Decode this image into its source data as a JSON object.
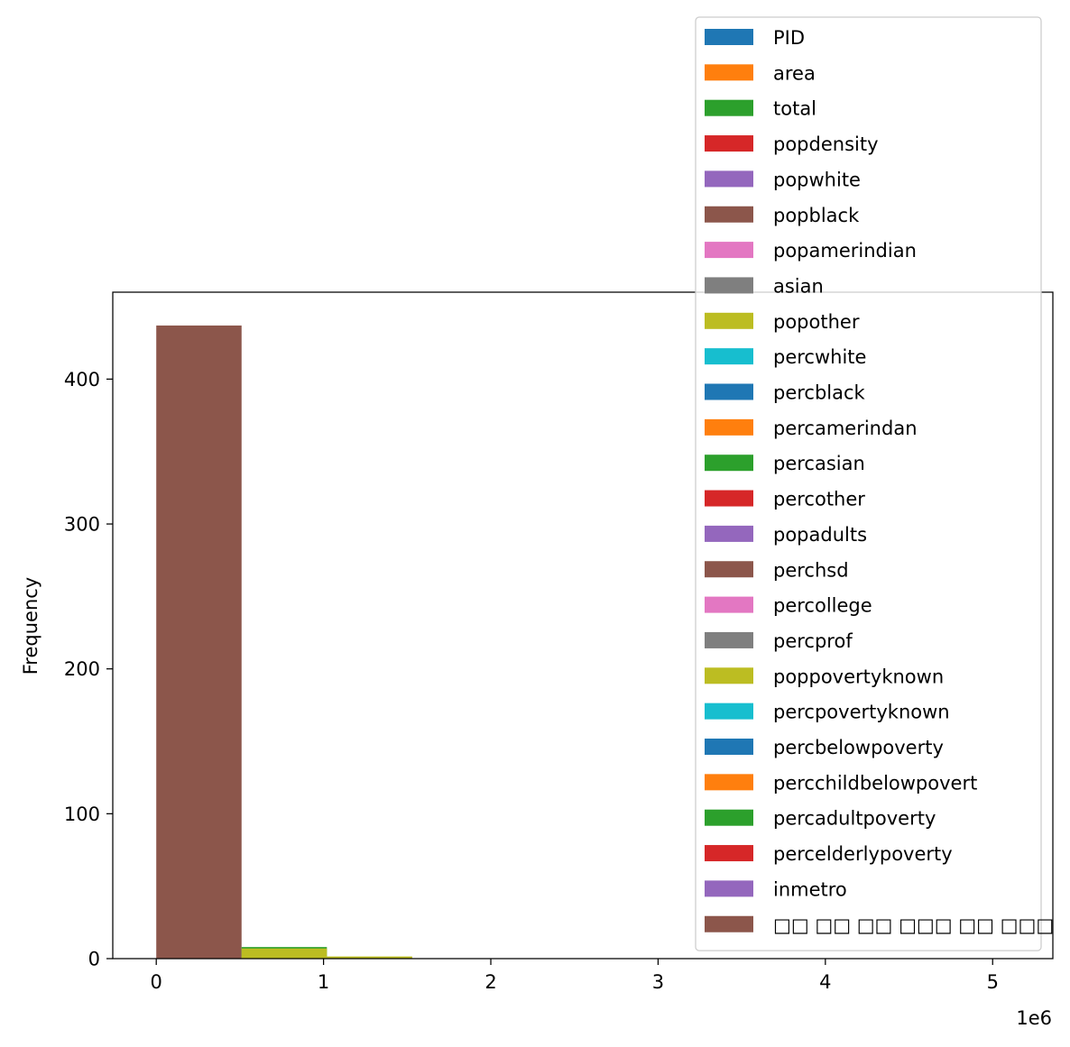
{
  "chart_data": {
    "type": "bar",
    "ylabel": "Frequency",
    "x_offset_label": "1e6",
    "xlim": [
      -260000,
      5360000
    ],
    "ylim": [
      0,
      460
    ],
    "x_ticks": [
      {
        "value": 0,
        "label": "0"
      },
      {
        "value": 1000000,
        "label": "1"
      },
      {
        "value": 2000000,
        "label": "2"
      },
      {
        "value": 3000000,
        "label": "3"
      },
      {
        "value": 4000000,
        "label": "4"
      },
      {
        "value": 5000000,
        "label": "5"
      }
    ],
    "y_ticks": [
      {
        "value": 0,
        "label": "0"
      },
      {
        "value": 100,
        "label": "100"
      },
      {
        "value": 200,
        "label": "200"
      },
      {
        "value": 300,
        "label": "300"
      },
      {
        "value": 400,
        "label": "400"
      }
    ],
    "bars": [
      {
        "x0": 0,
        "x1": 510000,
        "y": 437,
        "color": "#8c564b"
      },
      {
        "x0": 510000,
        "x1": 1020000,
        "y": 8,
        "color": "#2ca02c"
      },
      {
        "x0": 510000,
        "x1": 1020000,
        "y": 7,
        "color": "#bcbd22"
      },
      {
        "x0": 1020000,
        "x1": 1530000,
        "y": 1.5,
        "color": "#bcbd22"
      }
    ],
    "legend": {
      "placement": "top-right",
      "entries": [
        {
          "label": "PID",
          "color": "#1f77b4"
        },
        {
          "label": "area",
          "color": "#ff7f0e"
        },
        {
          "label": "total",
          "color": "#2ca02c"
        },
        {
          "label": "popdensity",
          "color": "#d62728"
        },
        {
          "label": "popwhite",
          "color": "#9467bd"
        },
        {
          "label": "popblack",
          "color": "#8c564b"
        },
        {
          "label": "popamerindian",
          "color": "#e377c2"
        },
        {
          "label": "asian",
          "color": "#7f7f7f"
        },
        {
          "label": "popother",
          "color": "#bcbd22"
        },
        {
          "label": "percwhite",
          "color": "#17becf"
        },
        {
          "label": "percblack",
          "color": "#1f77b4"
        },
        {
          "label": "percamerindan",
          "color": "#ff7f0e"
        },
        {
          "label": "percasian",
          "color": "#2ca02c"
        },
        {
          "label": "percother",
          "color": "#d62728"
        },
        {
          "label": "popadults",
          "color": "#9467bd"
        },
        {
          "label": "perchsd",
          "color": "#8c564b"
        },
        {
          "label": "percollege",
          "color": "#e377c2"
        },
        {
          "label": "percprof",
          "color": "#7f7f7f"
        },
        {
          "label": "poppovertyknown",
          "color": "#bcbd22"
        },
        {
          "label": "percpovertyknown",
          "color": "#17becf"
        },
        {
          "label": "percbelowpoverty",
          "color": "#1f77b4"
        },
        {
          "label": "percchildbelowpovert",
          "color": "#ff7f0e"
        },
        {
          "label": "percadultpoverty",
          "color": "#2ca02c"
        },
        {
          "label": "percelderlypoverty",
          "color": "#d62728"
        },
        {
          "label": "inmetro",
          "color": "#9467bd"
        },
        {
          "label": "□□ □□ □□ □□□ □□ □□□",
          "color": "#8c564b"
        }
      ]
    }
  }
}
